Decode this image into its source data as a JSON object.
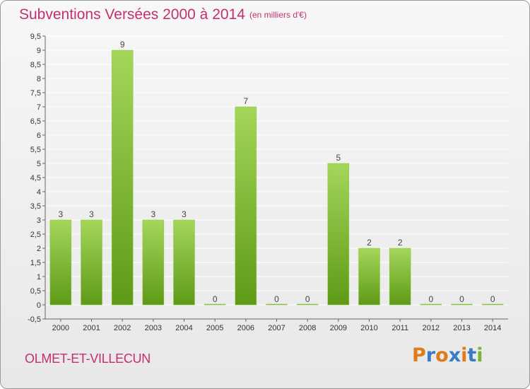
{
  "header": {
    "title": "Subventions Versées 2000 à 2014",
    "unit": "(en milliers d'€)"
  },
  "footer": {
    "commune": "OLMET-ET-VILLECUN",
    "logo_text": "Proxiti"
  },
  "colors": {
    "title": "#c2306f",
    "bar_top": "#a4d65a",
    "bar_bottom": "#5e9a17",
    "axis": "#666666",
    "gridline": "#ffffff",
    "logo_letters": [
      "#e07b1a",
      "#3a7bc8",
      "#e07b1a",
      "#3a7bc8",
      "#e07b1a",
      "#3a7bc8",
      "#7ab32e"
    ]
  },
  "chart_data": {
    "type": "bar",
    "title": "Subventions Versées 2000 à 2014",
    "xlabel": "",
    "ylabel": "",
    "categories": [
      "2000",
      "2001",
      "2002",
      "2003",
      "2004",
      "2005",
      "2006",
      "2007",
      "2008",
      "2009",
      "2010",
      "2011",
      "2012",
      "2013",
      "2014"
    ],
    "values": [
      3,
      3,
      9,
      3,
      3,
      0,
      7,
      0,
      0,
      5,
      2,
      2,
      0,
      0,
      0
    ],
    "data_labels": [
      "3",
      "3",
      "9",
      "3",
      "3",
      "0",
      "7",
      "0",
      "0",
      "5",
      "2",
      "2",
      "0",
      "0",
      "0"
    ],
    "ylim": [
      -0.5,
      9.5
    ],
    "yticks": [
      "-0,5",
      "0",
      "0,5",
      "1",
      "1,5",
      "2",
      "2,5",
      "3",
      "3,5",
      "4",
      "4,5",
      "5",
      "5,5",
      "6",
      "6,5",
      "7",
      "7,5",
      "8",
      "8,5",
      "9",
      "9,5"
    ],
    "ytick_values": [
      -0.5,
      0,
      0.5,
      1,
      1.5,
      2,
      2.5,
      3,
      3.5,
      4,
      4.5,
      5,
      5.5,
      6,
      6.5,
      7,
      7.5,
      8,
      8.5,
      9,
      9.5
    ],
    "grid": true,
    "legend": "none"
  }
}
